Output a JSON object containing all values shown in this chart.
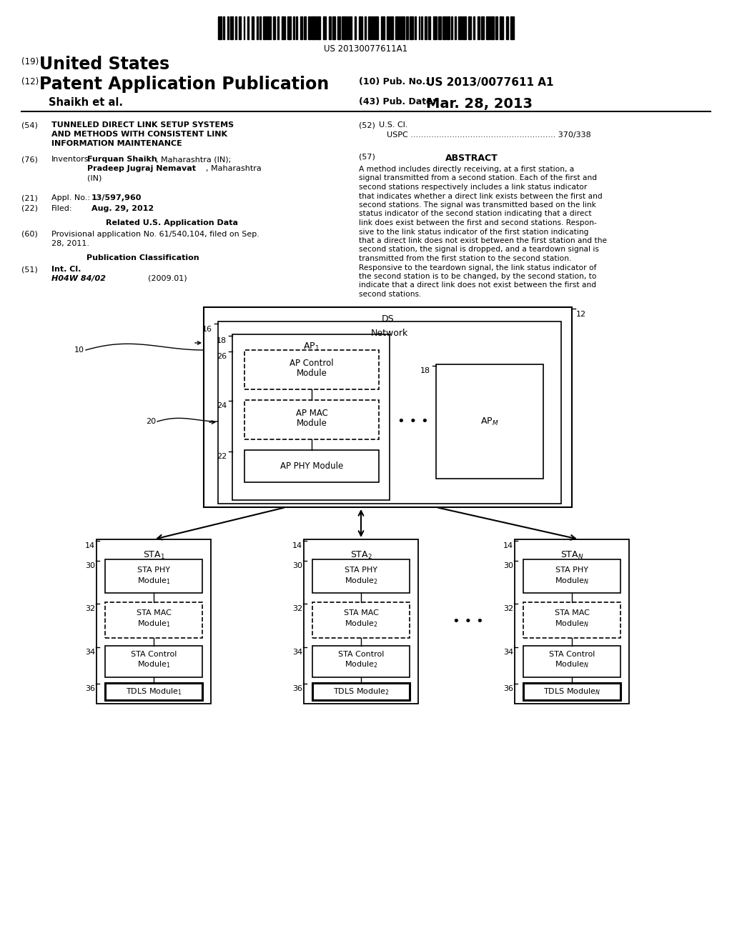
{
  "bg_color": "#ffffff",
  "barcode_text": "US 20130077611A1",
  "title19_text": "United States",
  "title12_text": "Patent Application Publication",
  "pub_no_label": "(10) Pub. No.:",
  "pub_no_value": "US 2013/0077611 A1",
  "author": "Shaikh et al.",
  "pub_date_label": "(43) Pub. Date:",
  "pub_date_value": "Mar. 28, 2013",
  "abstract_lines": [
    "A method includes directly receiving, at a first station, a",
    "signal transmitted from a second station. Each of the first and",
    "second stations respectively includes a link status indicator",
    "that indicates whether a direct link exists between the first and",
    "second stations. The signal was transmitted based on the link",
    "status indicator of the second station indicating that a direct",
    "link does exist between the first and second stations. Respon-",
    "sive to the link status indicator of the first station indicating",
    "that a direct link does not exist between the first station and the",
    "second station, the signal is dropped, and a teardown signal is",
    "transmitted from the first station to the second station.",
    "Responsive to the teardown signal, the link status indicator of",
    "the second station is to be changed, by the second station, to",
    "indicate that a direct link does not exist between the first and",
    "second stations."
  ]
}
